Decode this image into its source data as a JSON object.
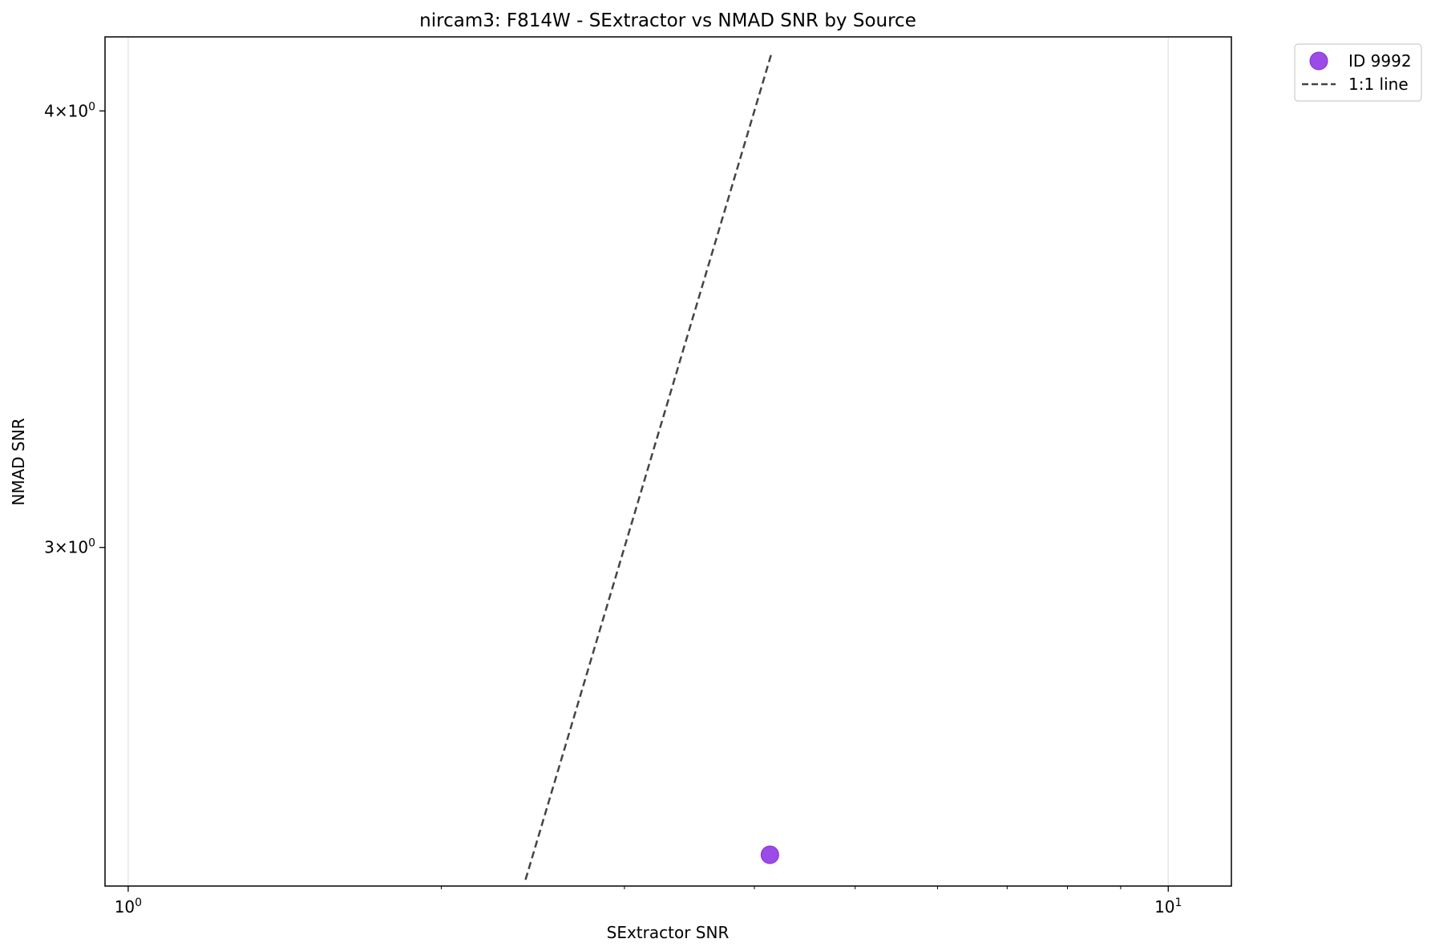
{
  "chart_data": {
    "type": "scatter",
    "title": "nircam3: F814W - SExtractor vs NMAD SNR by Source",
    "xlabel": "SExtractor SNR",
    "ylabel": "NMAD SNR",
    "xscale": "log",
    "yscale": "log",
    "xlim": [
      0.95,
      11.5
    ],
    "ylim": [
      2.4,
      4.2
    ],
    "x_ticks": [
      {
        "value": 1,
        "base": "10",
        "exp": "0"
      },
      {
        "value": 10,
        "base": "10",
        "exp": "1"
      }
    ],
    "y_ticks": [
      {
        "value": 3,
        "mant": "3",
        "base": "10",
        "exp": "0"
      },
      {
        "value": 4,
        "mant": "4",
        "base": "10",
        "exp": "0"
      }
    ],
    "grid": "x-major only",
    "legend_position": "outside top-right",
    "series": [
      {
        "name": "ID 9992",
        "kind": "scatter",
        "color": "#8a2be2",
        "points": [
          {
            "x": 4.14,
            "y": 2.45
          }
        ]
      },
      {
        "name": "1:1 line",
        "kind": "line",
        "style": "dashed",
        "color": "#444444",
        "points": [
          {
            "x": 2.41,
            "y": 2.41
          },
          {
            "x": 4.15,
            "y": 4.15
          }
        ]
      }
    ]
  }
}
